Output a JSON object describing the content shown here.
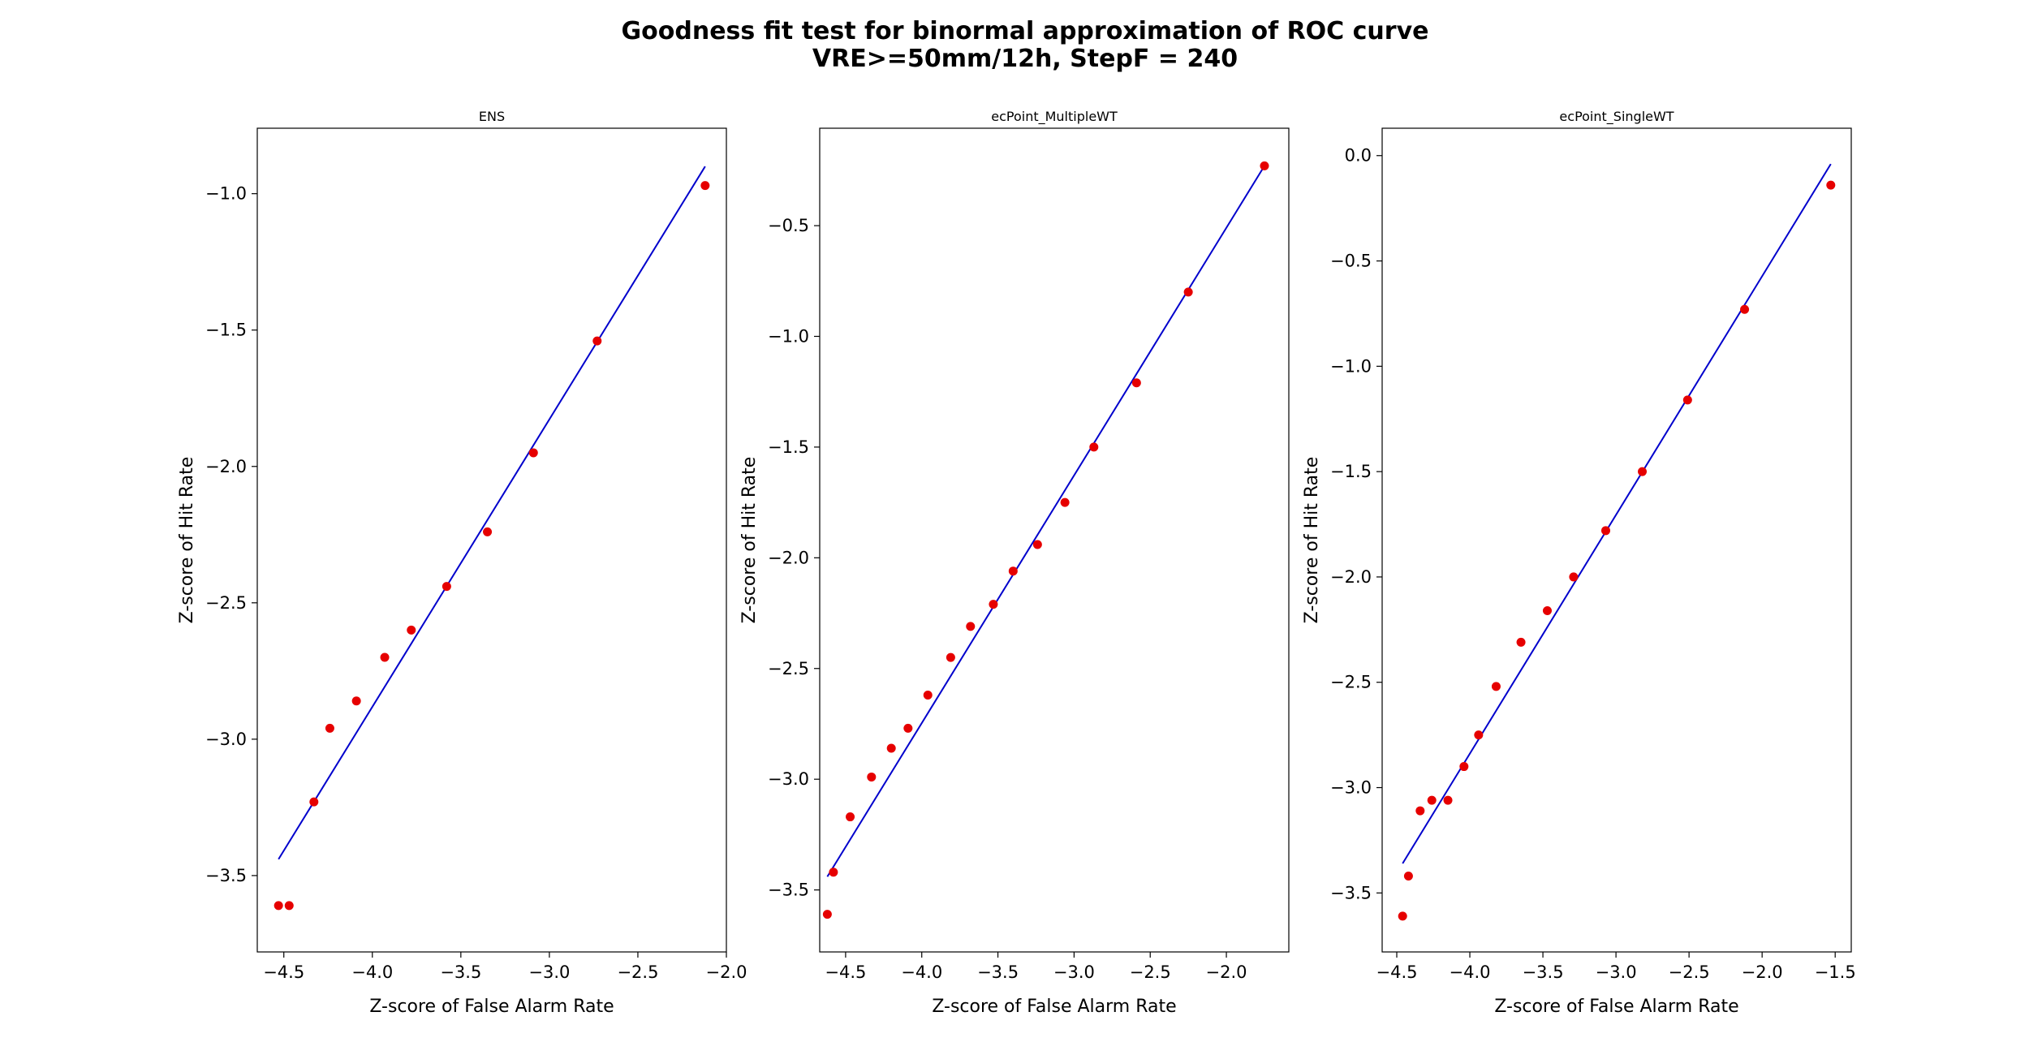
{
  "figure": {
    "title_line1": "Goodness fit test for binormal approximation of ROC curve",
    "title_line2": "VRE>=50mm/12h, StepF = 240"
  },
  "colors": {
    "points": "#e60000",
    "line": "#0000cc",
    "axes": "#000000"
  },
  "chart_data": [
    {
      "type": "scatter",
      "title": "ENS",
      "xlabel": "Z-score of False Alarm Rate",
      "ylabel": "Z-score of Hit Rate",
      "xlim": [
        -4.65,
        -2.0
      ],
      "ylim": [
        -3.78,
        -0.76
      ],
      "xticks": [
        -4.5,
        -4.0,
        -3.5,
        -3.0,
        -2.5,
        -2.0
      ],
      "xtick_labels": [
        "−4.5",
        "−4.0",
        "−3.5",
        "−3.0",
        "−2.5",
        "−2.0"
      ],
      "yticks": [
        -3.5,
        -3.0,
        -2.5,
        -2.0,
        -1.5,
        -1.0
      ],
      "ytick_labels": [
        "−3.5",
        "−3.0",
        "−2.5",
        "−2.0",
        "−1.5",
        "−1.0"
      ],
      "points": [
        [
          -4.53,
          -3.61
        ],
        [
          -4.47,
          -3.61
        ],
        [
          -4.33,
          -3.23
        ],
        [
          -4.24,
          -2.96
        ],
        [
          -4.09,
          -2.86
        ],
        [
          -3.93,
          -2.7
        ],
        [
          -3.78,
          -2.6
        ],
        [
          -3.58,
          -2.44
        ],
        [
          -3.35,
          -2.24
        ],
        [
          -3.09,
          -1.95
        ],
        [
          -2.73,
          -1.54
        ],
        [
          -2.12,
          -0.97
        ]
      ],
      "fit_line": [
        [
          -4.53,
          -3.44
        ],
        [
          -2.12,
          -0.9
        ]
      ]
    },
    {
      "type": "scatter",
      "title": "ecPoint_MultipleWT",
      "xlabel": "Z-score of False Alarm Rate",
      "ylabel": "Z-score of Hit Rate",
      "xlim": [
        -4.67,
        -1.59
      ],
      "ylim": [
        -3.78,
        -0.06
      ],
      "xticks": [
        -4.5,
        -4.0,
        -3.5,
        -3.0,
        -2.5,
        -2.0
      ],
      "xtick_labels": [
        "−4.5",
        "−4.0",
        "−3.5",
        "−3.0",
        "−2.5",
        "−2.0"
      ],
      "yticks": [
        -3.5,
        -3.0,
        -2.5,
        -2.0,
        -1.5,
        -1.0,
        -0.5
      ],
      "ytick_labels": [
        "−3.5",
        "−3.0",
        "−2.5",
        "−2.0",
        "−1.5",
        "−1.0",
        "−0.5"
      ],
      "points": [
        [
          -4.62,
          -3.61
        ],
        [
          -4.58,
          -3.42
        ],
        [
          -4.47,
          -3.17
        ],
        [
          -4.33,
          -2.99
        ],
        [
          -4.2,
          -2.86
        ],
        [
          -4.09,
          -2.77
        ],
        [
          -3.96,
          -2.62
        ],
        [
          -3.81,
          -2.45
        ],
        [
          -3.68,
          -2.31
        ],
        [
          -3.53,
          -2.21
        ],
        [
          -3.4,
          -2.06
        ],
        [
          -3.24,
          -1.94
        ],
        [
          -3.06,
          -1.75
        ],
        [
          -2.87,
          -1.5
        ],
        [
          -2.59,
          -1.21
        ],
        [
          -2.25,
          -0.8
        ],
        [
          -1.75,
          -0.23
        ]
      ],
      "fit_line": [
        [
          -4.62,
          -3.44
        ],
        [
          -1.75,
          -0.23
        ]
      ]
    },
    {
      "type": "scatter",
      "title": "ecPoint_SingleWT",
      "xlabel": "Z-score of False Alarm Rate",
      "ylabel": "Z-score of Hit Rate",
      "xlim": [
        -4.6,
        -1.39
      ],
      "ylim": [
        -3.78,
        0.13
      ],
      "xticks": [
        -4.5,
        -4.0,
        -3.5,
        -3.0,
        -2.5,
        -2.0,
        -1.5
      ],
      "xtick_labels": [
        "−4.5",
        "−4.0",
        "−3.5",
        "−3.0",
        "−2.5",
        "−2.0",
        "−1.5"
      ],
      "yticks": [
        -3.5,
        -3.0,
        -2.5,
        -2.0,
        -1.5,
        -1.0,
        -0.5,
        0.0
      ],
      "ytick_labels": [
        "−3.5",
        "−3.0",
        "−2.5",
        "−2.0",
        "−1.5",
        "−1.0",
        "−0.5",
        "0.0"
      ],
      "points": [
        [
          -4.46,
          -3.61
        ],
        [
          -4.42,
          -3.42
        ],
        [
          -4.34,
          -3.11
        ],
        [
          -4.26,
          -3.06
        ],
        [
          -4.15,
          -3.06
        ],
        [
          -4.04,
          -2.9
        ],
        [
          -3.94,
          -2.75
        ],
        [
          -3.82,
          -2.52
        ],
        [
          -3.65,
          -2.31
        ],
        [
          -3.47,
          -2.16
        ],
        [
          -3.29,
          -2.0
        ],
        [
          -3.07,
          -1.78
        ],
        [
          -2.82,
          -1.5
        ],
        [
          -2.51,
          -1.16
        ],
        [
          -2.12,
          -0.73
        ],
        [
          -1.53,
          -0.14
        ]
      ],
      "fit_line": [
        [
          -4.46,
          -3.36
        ],
        [
          -1.53,
          -0.04
        ]
      ]
    }
  ]
}
